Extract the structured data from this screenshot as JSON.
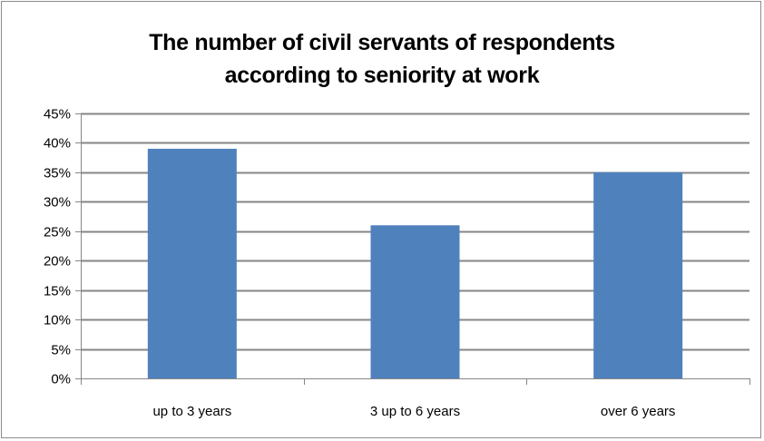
{
  "chart_data": {
    "type": "bar",
    "title_lines": [
      "The number of civil servants of respondents",
      "according to seniority at work"
    ],
    "categories": [
      "up to 3 years",
      "3 up to 6 years",
      "over 6 years"
    ],
    "values": [
      0.39,
      0.26,
      0.35
    ],
    "ylim": [
      0,
      0.45
    ],
    "ytick_step": 0.05,
    "ytick_labels": [
      "0%",
      "5%",
      "10%",
      "15%",
      "20%",
      "25%",
      "30%",
      "35%",
      "40%",
      "45%"
    ],
    "grid": true,
    "legend": "none",
    "colors": {
      "bar": "#4f81bd",
      "grid": "#868686",
      "axis": "#868686",
      "frame": "#8c8c8c"
    }
  }
}
